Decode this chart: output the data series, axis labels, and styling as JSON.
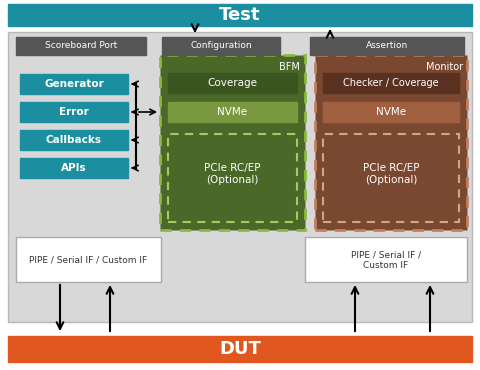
{
  "bg_color": "#d8d8d8",
  "bg_border": "#b8b8b8",
  "test_bar": {
    "text": "Test",
    "color": "#1b8fa0",
    "text_color": "#ffffff"
  },
  "dut_bar": {
    "text": "DUT",
    "color": "#e05820",
    "text_color": "#ffffff"
  },
  "scoreboard_label": "Scoreboard Port",
  "config_label": "Configuration",
  "assertion_label": "Assertion",
  "label_bg": "#555555",
  "label_text_color": "#ffffff",
  "teal_color": "#1b8fa0",
  "teal_items": [
    "Generator",
    "Error",
    "Callbacks",
    "APIs"
  ],
  "green_outer_fill": "#4a6828",
  "green_outer_border": "#8ab840",
  "green_cov_fill": "#3a5520",
  "green_nvme_fill": "#7a9840",
  "green_pcie_fill": "#4a6828",
  "green_pcie_border": "#aac860",
  "green_label": "BFM",
  "brown_outer_fill": "#7a4830",
  "brown_outer_border": "#c08060",
  "brown_cov_fill": "#5a3020",
  "brown_nvme_fill": "#a06040",
  "brown_pcie_fill": "#7a4830",
  "brown_pcie_border": "#d0a880",
  "brown_label": "Monitor",
  "pipe_left": "PIPE / Serial IF / Custom IF",
  "pipe_right": "PIPE / Serial IF /\nCustom IF",
  "optional_text": "PCIe RC/EP\n(Optional)",
  "white_box_border": "#aaaaaa"
}
